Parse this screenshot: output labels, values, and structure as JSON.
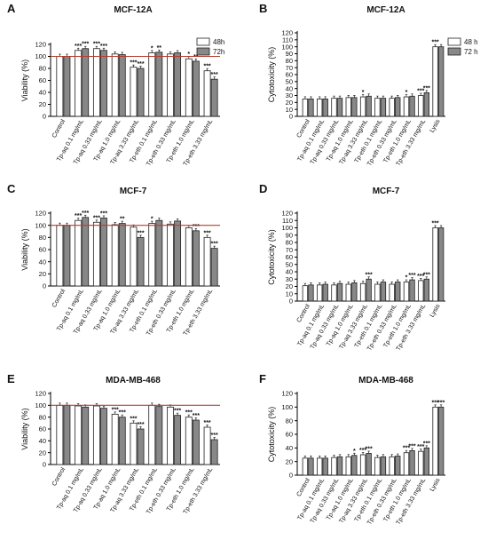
{
  "panels": [
    {
      "label": "A",
      "title": "MCF-12A",
      "ylabel": "Viability (%)",
      "yticks": [
        "0",
        "20",
        "40",
        "60",
        "80",
        "100",
        "120"
      ],
      "ref_line": 100,
      "legend": [
        {
          "label": "48h",
          "color": "#ffffff"
        },
        {
          "label": "72h",
          "color": "#888888"
        }
      ]
    },
    {
      "label": "B",
      "title": "MCF-12A",
      "ylabel": "Cytotoxicity (%)",
      "yticks": [
        "0",
        "10",
        "20",
        "30",
        "40",
        "50",
        "60",
        "70",
        "80",
        "90",
        "100",
        "110",
        "120"
      ],
      "legend": [
        {
          "label": "48 h",
          "color": "#ffffff"
        },
        {
          "label": "72 h",
          "color": "#888888"
        }
      ]
    },
    {
      "label": "C",
      "title": "MCF-7",
      "ylabel": "Viability (%)",
      "yticks": [
        "0",
        "20",
        "40",
        "60",
        "80",
        "100",
        "120"
      ],
      "ref_line": 100
    },
    {
      "label": "D",
      "title": "MCF-7",
      "ylabel": "Cytotoxicity (%)",
      "yticks": [
        "0",
        "10",
        "20",
        "30",
        "40",
        "50",
        "60",
        "70",
        "80",
        "90",
        "100",
        "110",
        "120"
      ]
    },
    {
      "label": "E",
      "title": "MDA-MB-468",
      "ylabel": "Viability (%)",
      "yticks": [
        "0",
        "20",
        "40",
        "60",
        "80",
        "100",
        "120"
      ],
      "ref_line": 100
    },
    {
      "label": "F",
      "title": "MDA-MB-468",
      "ylabel": "Cytotoxicity (%)",
      "yticks": [
        "0",
        "20",
        "40",
        "60",
        "80",
        "100",
        "120"
      ]
    }
  ],
  "chart_data": [
    {
      "type": "bar",
      "panel": "A",
      "categories": [
        "Control",
        "Tp-aq 0.1 mg/mL",
        "Tp-aq 0.33 mg/mL",
        "Tp-aq 1.0 mg/mL",
        "Tp-aq 3.33 mg/mL",
        "Tp-eth 0.1 mg/mL",
        "Tp-eth 0.33 mg/mL",
        "Tp-eth 1.0 mg/mL",
        "Tp-eth 3.33 mg/mL"
      ],
      "series": [
        {
          "name": "48h",
          "values": [
            100,
            110,
            113,
            104,
            82,
            106,
            104,
            96,
            76
          ],
          "sig": [
            "",
            "***",
            "***",
            "",
            "***",
            "*",
            "",
            "*",
            "***"
          ]
        },
        {
          "name": "72h",
          "values": [
            100,
            113,
            110,
            103,
            80,
            107,
            106,
            92,
            62
          ],
          "sig": [
            "",
            "***",
            "***",
            "",
            "***",
            "**",
            "",
            "**",
            "***"
          ]
        }
      ],
      "ylim": [
        0,
        120
      ],
      "grid": false
    },
    {
      "type": "bar",
      "panel": "B",
      "categories": [
        "Control",
        "Tp-aq 0.1 mg/mL",
        "Tp-aq 0.33 mg/mL",
        "Tp-aq 1.0 mg/mL",
        "Tp-aq 3.33 mg/mL",
        "Tp-eth 0.1 mg/mL",
        "Tp-eth 0.33 mg/mL",
        "Tp-eth 1.0 mg/mL",
        "Tp-eth 3.33 mg/mL",
        "Lysis"
      ],
      "series": [
        {
          "name": "48 h",
          "values": [
            25,
            25,
            26,
            27,
            28,
            26,
            26,
            28,
            30,
            100
          ],
          "sig": [
            "",
            "",
            "",
            "",
            "*",
            "",
            "",
            "*",
            "***",
            "***"
          ]
        },
        {
          "name": "72 h",
          "values": [
            25,
            25,
            26,
            27,
            29,
            26,
            27,
            29,
            34,
            100
          ],
          "sig": [
            "",
            "",
            "",
            "",
            "",
            "",
            "",
            "",
            "***",
            ""
          ]
        }
      ],
      "ylim": [
        0,
        120
      ],
      "grid": false
    },
    {
      "type": "bar",
      "panel": "C",
      "categories": [
        "Control",
        "Tp-aq 0.1 mg/mL",
        "Tp-aq 0.33 mg/mL",
        "Tp-aq 1.0 mg/mL",
        "Tp-aq 3.33 mg/mL",
        "Tp-eth 0.1 mg/mL",
        "Tp-eth 0.33 mg/mL",
        "Tp-eth 1.0 mg/mL",
        "Tp-eth 3.33 mg/mL"
      ],
      "series": [
        {
          "name": "48h",
          "values": [
            100,
            108,
            105,
            101,
            97,
            103,
            102,
            96,
            80
          ],
          "sig": [
            "",
            "***",
            "***",
            "",
            "",
            "*",
            "",
            "",
            "***"
          ]
        },
        {
          "name": "72h",
          "values": [
            100,
            113,
            112,
            103,
            80,
            108,
            107,
            91,
            62
          ],
          "sig": [
            "",
            "***",
            "***",
            "**",
            "***",
            "",
            "",
            "***",
            "***"
          ]
        }
      ],
      "ylim": [
        0,
        120
      ],
      "grid": false
    },
    {
      "type": "bar",
      "panel": "D",
      "categories": [
        "Control",
        "Tp-aq 0.1 mg/mL",
        "Tp-aq 0.33 mg/mL",
        "Tp-aq 1.0 mg/mL",
        "Tp-aq 3.33 mg/mL",
        "Tp-eth 0.1 mg/mL",
        "Tp-eth 0.33 mg/mL",
        "Tp-eth 1.0 mg/mL",
        "Tp-eth 3.33 mg/mL",
        "Lysis"
      ],
      "series": [
        {
          "name": "48h",
          "values": [
            21,
            22,
            22,
            23,
            24,
            23,
            23,
            26,
            28,
            100
          ],
          "sig": [
            "",
            "",
            "",
            "",
            "",
            "",
            "",
            "*",
            "***",
            "***"
          ]
        },
        {
          "name": "72h",
          "values": [
            22,
            23,
            24,
            25,
            30,
            26,
            26,
            29,
            30,
            100
          ],
          "sig": [
            "",
            "",
            "",
            "",
            "***",
            "",
            "",
            "***",
            "***",
            ""
          ]
        }
      ],
      "ylim": [
        0,
        120
      ],
      "grid": false
    },
    {
      "type": "bar",
      "panel": "E",
      "categories": [
        "Control",
        "Tp-aq 0.1 mg/mL",
        "Tp-aq 0.33 mg/mL",
        "Tp-aq 1.0 mg/mL",
        "Tp-aq 3.33 mg/mL",
        "Tp-eth 0.1 mg/mL",
        "Tp-eth 0.33 mg/mL",
        "Tp-eth 1.0 mg/mL",
        "Tp-eth 3.33 mg/mL"
      ],
      "series": [
        {
          "name": "48h",
          "values": [
            100,
            99,
            99,
            85,
            70,
            100,
            97,
            80,
            63
          ],
          "sig": [
            "",
            "",
            "",
            "***",
            "***",
            "",
            "",
            "***",
            "***"
          ]
        },
        {
          "name": "72h",
          "values": [
            100,
            97,
            95,
            80,
            60,
            98,
            83,
            75,
            42
          ],
          "sig": [
            "",
            "",
            "",
            "***",
            "***",
            "",
            "***",
            "***",
            "***"
          ]
        }
      ],
      "ylim": [
        0,
        120
      ],
      "grid": false
    },
    {
      "type": "bar",
      "panel": "F",
      "categories": [
        "Control",
        "Tp-aq 0.1 mg/mL",
        "Tp-aq 0.33 mg/mL",
        "Tp-aq 1.0 mg/mL",
        "Tp-aq 3.33 mg/mL",
        "Tp-eth 0.1 mg/mL",
        "Tp-eth 0.33 mg/mL",
        "Tp-eth 1.0 mg/mL",
        "Tp-eth 3.33 mg/mL",
        "Lysis"
      ],
      "series": [
        {
          "name": "48h",
          "values": [
            25,
            25,
            26,
            27,
            30,
            26,
            27,
            33,
            35,
            100
          ],
          "sig": [
            "",
            "",
            "",
            "",
            "***",
            "",
            "",
            "***",
            "***",
            "***"
          ]
        },
        {
          "name": "72h",
          "values": [
            25,
            25,
            27,
            29,
            32,
            27,
            28,
            36,
            40,
            100
          ],
          "sig": [
            "",
            "",
            "",
            "*",
            "***",
            "",
            "",
            "***",
            "***",
            "***"
          ]
        }
      ],
      "ylim": [
        0,
        120
      ],
      "grid": false
    }
  ],
  "colors": {
    "bar_48h": "#ffffff",
    "bar_72h": "#888888",
    "ref_line": "#b3402a",
    "axis": "#000000"
  }
}
